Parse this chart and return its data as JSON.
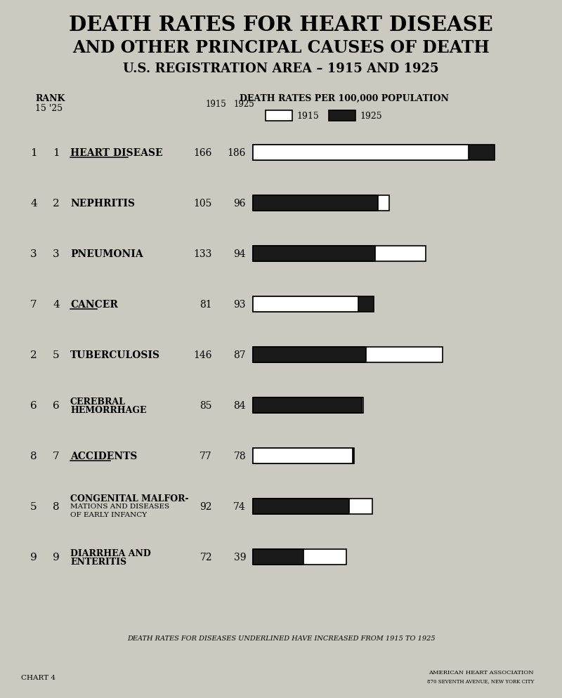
{
  "title_line1": "DEATH RATES FOR HEART DISEASE",
  "title_line2": "AND OTHER PRINCIPAL CAUSES OF DEATH",
  "title_line3": "U.S. REGISTRATION AREA – 1915 AND 1925",
  "footnote": "DEATH RATES FOR DISEASES UNDERLINED HAVE INCREASED FROM 1915 TO 1925",
  "chart_label": "CHART 4",
  "categories": [
    {
      "rank15": "1",
      "rank25": "1",
      "name": "HEART DISEASE",
      "val1915": 166,
      "val1925": 186,
      "underline": true,
      "lines": [
        "HEART DISEASE"
      ]
    },
    {
      "rank15": "4",
      "rank25": "2",
      "name": "NEPHRITIS",
      "val1915": 105,
      "val1925": 96,
      "underline": false,
      "lines": [
        "NEPHRITIS"
      ]
    },
    {
      "rank15": "3",
      "rank25": "3",
      "name": "PNEUMONIA",
      "val1915": 133,
      "val1925": 94,
      "underline": false,
      "lines": [
        "PNEUMONIA"
      ]
    },
    {
      "rank15": "7",
      "rank25": "4",
      "name": "CANCER",
      "val1915": 81,
      "val1925": 93,
      "underline": true,
      "lines": [
        "CANCER"
      ]
    },
    {
      "rank15": "2",
      "rank25": "5",
      "name": "TUBERCULOSIS",
      "val1915": 146,
      "val1925": 87,
      "underline": false,
      "lines": [
        "TUBERCULOSIS"
      ]
    },
    {
      "rank15": "6",
      "rank25": "6",
      "name": "CEREBRAL HEMORRHAGE",
      "val1915": 85,
      "val1925": 84,
      "underline": false,
      "lines": [
        "CEREBRAL",
        "HEMORRHAGE"
      ]
    },
    {
      "rank15": "8",
      "rank25": "7",
      "name": "ACCIDENTS",
      "val1915": 77,
      "val1925": 78,
      "underline": true,
      "lines": [
        "ACCIDENTS"
      ]
    },
    {
      "rank15": "5",
      "rank25": "8",
      "name": "CONGENITAL MALFOR-MATIONS AND DISEASES OF EARLY INFANCY",
      "val1915": 92,
      "val1925": 74,
      "underline": false,
      "lines": [
        "CONGENITAL MALFOR-",
        "MATIONS AND DISEASES",
        "OF EARLY INFANCY"
      ]
    },
    {
      "rank15": "9",
      "rank25": "9",
      "name": "DIARRHEA AND ENTERITIS",
      "val1915": 72,
      "val1925": 39,
      "underline": false,
      "lines": [
        "DIARRHEA AND",
        "ENTERITIS"
      ]
    }
  ],
  "bar_color_1915": "#ffffff",
  "bar_color_1925": "#1a1a1a",
  "background_color": "#ccc9c0",
  "text_color": "#000000"
}
